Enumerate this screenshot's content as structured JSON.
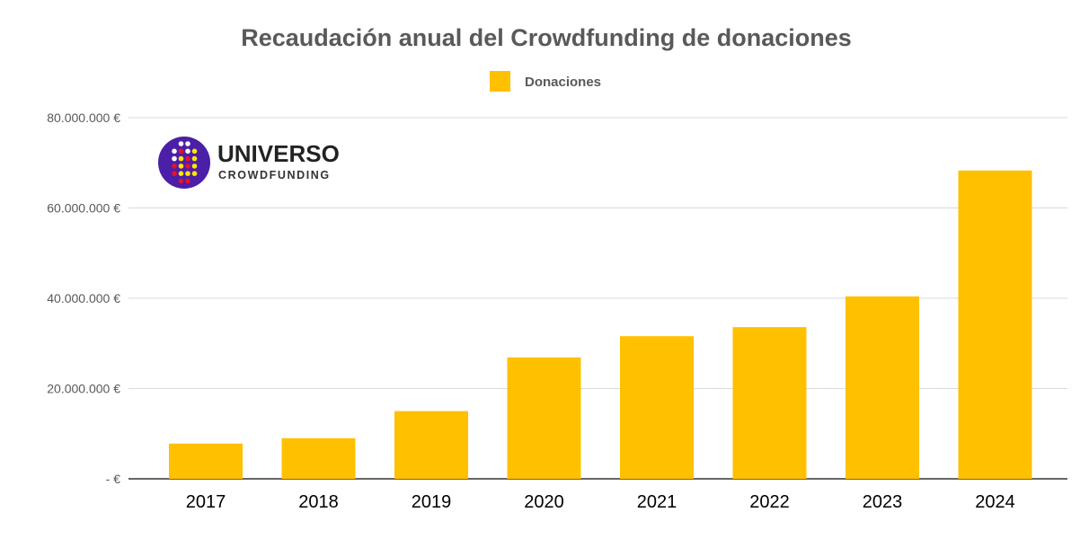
{
  "chart_data": {
    "type": "bar",
    "title": "Recaudación anual del Crowdfunding de donaciones",
    "categories": [
      "2017",
      "2018",
      "2019",
      "2020",
      "2021",
      "2022",
      "2023",
      "2024"
    ],
    "series": [
      {
        "name": "Donaciones",
        "values": [
          7800000,
          9000000,
          15000000,
          26900000,
          31600000,
          33600000,
          40400000,
          68300000
        ],
        "color": "#FFC000"
      }
    ],
    "ylim": [
      0,
      80000000
    ],
    "yticks": [
      0,
      20000000,
      40000000,
      60000000,
      80000000
    ],
    "ytick_labels": [
      "-  €",
      "20.000.000 €",
      "40.000.000 €",
      "60.000.000 €",
      "80.000.000 €"
    ],
    "grid": true,
    "legend": "top"
  },
  "logo": {
    "name": "UNIVERSO",
    "sub": "CROWDFUNDING"
  }
}
